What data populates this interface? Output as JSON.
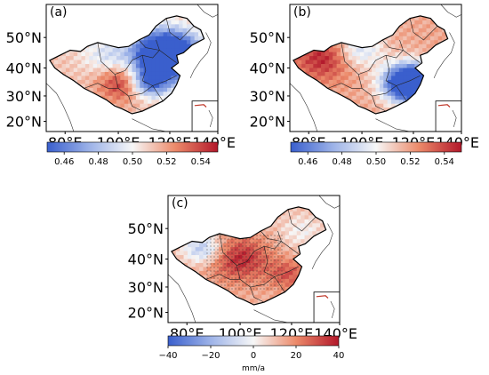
{
  "chart_data": [
    {
      "type": "heatmap",
      "panel_label": "(a)",
      "x_ticks": [
        "80°E",
        "100°E",
        "120°E",
        "140°E"
      ],
      "y_ticks": [
        "50°N",
        "40°N",
        "30°N",
        "20°N"
      ],
      "colorbar": {
        "ticks": [
          "0.46",
          "0.48",
          "0.50",
          "0.52",
          "0.54"
        ],
        "range": [
          0.45,
          0.55
        ],
        "colors": [
          "#3a5fcd",
          "#f7f7f7",
          "#b2182b"
        ]
      }
    },
    {
      "type": "heatmap",
      "panel_label": "(b)",
      "x_ticks": [
        "80°E",
        "100°E",
        "120°E",
        "140°E"
      ],
      "y_ticks": [
        "50°N",
        "40°N",
        "30°N",
        "20°N"
      ],
      "colorbar": {
        "ticks": [
          "0.46",
          "0.48",
          "0.50",
          "0.52",
          "0.54"
        ],
        "range": [
          0.45,
          0.55
        ],
        "colors": [
          "#3a5fcd",
          "#f7f7f7",
          "#b2182b"
        ]
      }
    },
    {
      "type": "heatmap",
      "panel_label": "(c)",
      "x_ticks": [
        "80°E",
        "100°E",
        "120°E",
        "140°E"
      ],
      "y_ticks": [
        "50°N",
        "40°N",
        "30°N",
        "20°N"
      ],
      "colorbar": {
        "ticks": [
          "−40",
          "−20",
          "0",
          "20",
          "40"
        ],
        "range": [
          -40,
          40
        ],
        "label": "mm/a",
        "colors": [
          "#3a5fcd",
          "#f7f7f7",
          "#b2182b"
        ]
      }
    }
  ]
}
